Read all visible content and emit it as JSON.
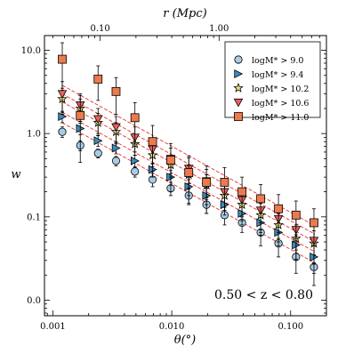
{
  "chart_data": {
    "type": "scatter",
    "title": "",
    "xlabel": "θ(°)",
    "ylabel": "w",
    "top_xlabel": "r (Mpc)",
    "xscale": "log",
    "yscale": "log",
    "xlim": [
      0.00085,
      0.2
    ],
    "ylim": [
      0.0065,
      15
    ],
    "x_ticks": [
      {
        "value": 0.001,
        "label": "0.001"
      },
      {
        "value": 0.01,
        "label": "0.010"
      },
      {
        "value": 0.1,
        "label": "0.100"
      }
    ],
    "y_ticks": [
      {
        "value": 0.01,
        "label": "0.0"
      },
      {
        "value": 0.1,
        "label": "0.1"
      },
      {
        "value": 1,
        "label": "1.0"
      },
      {
        "value": 10,
        "label": "10.0"
      }
    ],
    "top_ticks": [
      {
        "value": 0.0025,
        "label": "0.10"
      },
      {
        "value": 0.025,
        "label": "1.00"
      }
    ],
    "annotation": "0.50 < z < 0.80",
    "legend_position": "top-right",
    "grid": false,
    "x": [
      0.0012,
      0.0017,
      0.0024,
      0.0034,
      0.0049,
      0.0069,
      0.0098,
      0.0139,
      0.0196,
      0.0278,
      0.039,
      0.056,
      0.079,
      0.111,
      0.157
    ],
    "series": [
      {
        "name": "logM* > 9.0",
        "legend_label": "logM* > 9.0",
        "marker": "circle",
        "color": "#a8cbe6",
        "y": [
          1.05,
          0.72,
          0.58,
          0.47,
          0.35,
          0.28,
          0.22,
          0.18,
          0.14,
          0.105,
          0.085,
          0.065,
          0.048,
          0.033,
          0.025
        ],
        "err": [
          0.15,
          0.1,
          0.07,
          0.06,
          0.05,
          0.05,
          0.04,
          0.035,
          0.03,
          0.025,
          0.02,
          0.02,
          0.015,
          0.012,
          0.01
        ]
      },
      {
        "name": "logM* > 9.4",
        "legend_label": "logM* > 9.4",
        "marker": "triangle-right",
        "color": "#3d8bbf",
        "y": [
          1.6,
          1.15,
          0.82,
          0.67,
          0.47,
          0.37,
          0.3,
          0.23,
          0.18,
          0.14,
          0.11,
          0.085,
          0.065,
          0.046,
          0.033
        ],
        "err": [
          0.25,
          0.18,
          0.12,
          0.1,
          0.08,
          0.07,
          0.06,
          0.05,
          0.04,
          0.035,
          0.03,
          0.025,
          0.02,
          0.015,
          0.012
        ]
      },
      {
        "name": "logM* > 10.2",
        "legend_label": "logM* > 10.2",
        "marker": "star",
        "color": "#f0e87c",
        "y": [
          2.6,
          2.0,
          1.35,
          1.05,
          0.75,
          0.55,
          0.42,
          0.32,
          0.24,
          0.18,
          0.14,
          0.105,
          0.08,
          0.055,
          0.048
        ],
        "err": [
          0.9,
          0.6,
          0.4,
          0.3,
          0.2,
          0.15,
          0.12,
          0.1,
          0.08,
          0.06,
          0.05,
          0.04,
          0.03,
          0.025,
          0.02
        ]
      },
      {
        "name": "logM* > 10.6",
        "legend_label": "logM* > 10.6",
        "marker": "triangle-down",
        "color": "#ee5f5f",
        "y": [
          3.0,
          2.2,
          1.5,
          1.2,
          0.9,
          0.65,
          0.5,
          0.38,
          0.27,
          0.2,
          0.16,
          0.12,
          0.095,
          0.07,
          0.052
        ],
        "err": [
          1.2,
          0.8,
          0.5,
          0.4,
          0.3,
          0.22,
          0.17,
          0.13,
          0.1,
          0.08,
          0.06,
          0.05,
          0.04,
          0.03,
          0.025
        ]
      },
      {
        "name": "logM* > 11.0",
        "legend_label": "logM* > 11.0",
        "marker": "square",
        "color": "#ec7a4e",
        "y": [
          7.8,
          1.65,
          4.5,
          3.2,
          1.55,
          0.8,
          0.48,
          0.34,
          0.26,
          0.26,
          0.2,
          0.165,
          0.125,
          0.105,
          0.085
        ],
        "err": [
          4.5,
          1.2,
          2.0,
          1.5,
          0.8,
          0.45,
          0.28,
          0.2,
          0.15,
          0.13,
          0.1,
          0.08,
          0.06,
          0.05,
          0.04
        ]
      }
    ],
    "fit_lines": [
      {
        "x0": 0.0012,
        "y0": 1.35,
        "x1": 0.16,
        "y1": 0.028
      },
      {
        "x0": 0.0012,
        "y0": 1.8,
        "x1": 0.16,
        "y1": 0.038
      },
      {
        "x0": 0.0012,
        "y0": 2.4,
        "x1": 0.16,
        "y1": 0.05
      },
      {
        "x0": 0.0012,
        "y0": 3.0,
        "x1": 0.16,
        "y1": 0.062
      },
      {
        "x0": 0.0012,
        "y0": 3.8,
        "x1": 0.16,
        "y1": 0.078
      }
    ],
    "fit_line_color": "#e8312f"
  }
}
